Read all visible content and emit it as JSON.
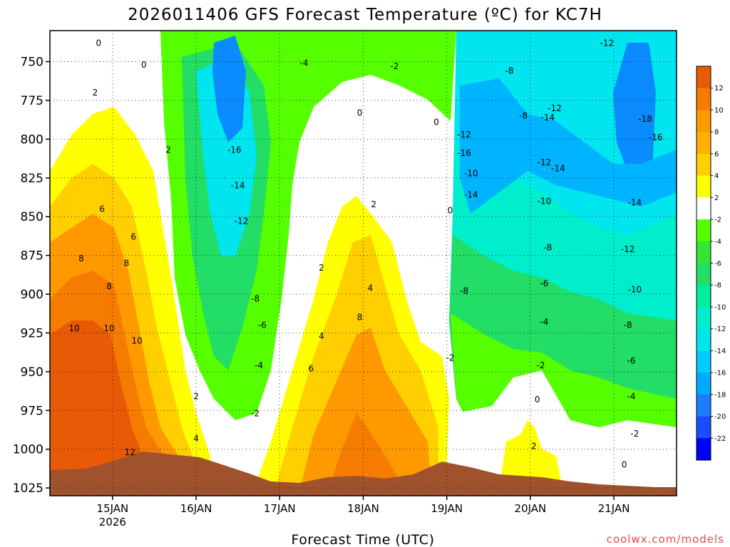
{
  "chart_data": {
    "type": "heatmap",
    "title": "2026011406 GFS Forecast Temperature (ºC) for KC7H",
    "xlabel": "Forecast Time (UTC)",
    "credit": "coolwx.com/models",
    "x_start": "2026-01-14T06:00Z",
    "x_end": "2026-01-21T18:00Z",
    "x_ticks": [
      {
        "label": "15JAN",
        "sub": "2026",
        "time": "2026-01-15T00:00Z"
      },
      {
        "label": "16JAN",
        "sub": "",
        "time": "2026-01-16T00:00Z"
      },
      {
        "label": "17JAN",
        "sub": "",
        "time": "2026-01-17T00:00Z"
      },
      {
        "label": "18JAN",
        "sub": "",
        "time": "2026-01-18T00:00Z"
      },
      {
        "label": "19JAN",
        "sub": "",
        "time": "2026-01-19T00:00Z"
      },
      {
        "label": "20JAN",
        "sub": "",
        "time": "2026-01-20T00:00Z"
      },
      {
        "label": "21JAN",
        "sub": "",
        "time": "2026-01-21T00:00Z"
      }
    ],
    "y_ticks": [
      750,
      775,
      800,
      825,
      850,
      875,
      900,
      925,
      950,
      975,
      1000,
      1025
    ],
    "ylim": [
      730,
      1030
    ],
    "y_axis": "pressure (hPa), increasing downward",
    "grid": "dotted",
    "legend": "colorbar, right",
    "colorbar": {
      "labels": [
        "12",
        "10",
        "8",
        "6",
        "4",
        "2",
        "-2",
        "-4",
        "-6",
        "-8",
        "-10",
        "-12",
        "-14",
        "-16",
        "-18",
        "-20",
        "-22"
      ],
      "colors": [
        "#e85a06",
        "#f57c00",
        "#ff9900",
        "#ffb000",
        "#ffcf00",
        "#ffff00",
        "#ffffff",
        "#55ff00",
        "#33e633",
        "#22dd66",
        "#00ee99",
        "#00eecc",
        "#00e5ee",
        "#00ccff",
        "#00aaff",
        "#1a7dff",
        "#1a4dff",
        "#0000ff"
      ]
    },
    "contour_labels": [
      {
        "text": "0",
        "time": "2026-01-14T20:00Z",
        "p": 738
      },
      {
        "text": "0",
        "time": "2026-01-15T09:00Z",
        "p": 752
      },
      {
        "text": "2",
        "time": "2026-01-14T19:00Z",
        "p": 770
      },
      {
        "text": "2",
        "time": "2026-01-15T16:00Z",
        "p": 807
      },
      {
        "text": "6",
        "time": "2026-01-14T21:00Z",
        "p": 845
      },
      {
        "text": "6",
        "time": "2026-01-15T06:00Z",
        "p": 863
      },
      {
        "text": "8",
        "time": "2026-01-14T15:00Z",
        "p": 877
      },
      {
        "text": "8",
        "time": "2026-01-15T04:00Z",
        "p": 880
      },
      {
        "text": "8",
        "time": "2026-01-14T23:00Z",
        "p": 895
      },
      {
        "text": "10",
        "time": "2026-01-14T13:00Z",
        "p": 922
      },
      {
        "text": "10",
        "time": "2026-01-14T23:00Z",
        "p": 922
      },
      {
        "text": "10",
        "time": "2026-01-15T07:00Z",
        "p": 930
      },
      {
        "text": "12",
        "time": "2026-01-15T05:00Z",
        "p": 1002
      },
      {
        "text": "2",
        "time": "2026-01-16T00:00Z",
        "p": 966
      },
      {
        "text": "4",
        "time": "2026-01-16T00:00Z",
        "p": 993
      },
      {
        "text": "-16",
        "time": "2026-01-16T11:00Z",
        "p": 807
      },
      {
        "text": "-14",
        "time": "2026-01-16T12:00Z",
        "p": 830
      },
      {
        "text": "-12",
        "time": "2026-01-16T13:00Z",
        "p": 853
      },
      {
        "text": "-8",
        "time": "2026-01-16T17:00Z",
        "p": 903
      },
      {
        "text": "-6",
        "time": "2026-01-16T19:00Z",
        "p": 920
      },
      {
        "text": "-4",
        "time": "2026-01-16T18:00Z",
        "p": 946
      },
      {
        "text": "-2",
        "time": "2026-01-16T17:00Z",
        "p": 977
      },
      {
        "text": "-4",
        "time": "2026-01-17T07:00Z",
        "p": 751
      },
      {
        "text": "-2",
        "time": "2026-01-18T09:00Z",
        "p": 753
      },
      {
        "text": "0",
        "time": "2026-01-17T23:00Z",
        "p": 783
      },
      {
        "text": "0",
        "time": "2026-01-18T21:00Z",
        "p": 789
      },
      {
        "text": "2",
        "time": "2026-01-17T12:00Z",
        "p": 883
      },
      {
        "text": "2",
        "time": "2026-01-18T03:00Z",
        "p": 842
      },
      {
        "text": "4",
        "time": "2026-01-17T12:00Z",
        "p": 927
      },
      {
        "text": "4",
        "time": "2026-01-18T02:00Z",
        "p": 896
      },
      {
        "text": "6",
        "time": "2026-01-17T09:00Z",
        "p": 948
      },
      {
        "text": "8",
        "time": "2026-01-17T23:00Z",
        "p": 915
      },
      {
        "text": "0",
        "time": "2026-01-19T01:00Z",
        "p": 846
      },
      {
        "text": "-2",
        "time": "2026-01-19T01:00Z",
        "p": 941
      },
      {
        "text": "-8",
        "time": "2026-01-19T05:00Z",
        "p": 898
      },
      {
        "text": "-8",
        "time": "2026-01-19T18:00Z",
        "p": 756
      },
      {
        "text": "-8",
        "time": "2026-01-19T22:00Z",
        "p": 785
      },
      {
        "text": "-12",
        "time": "2026-01-19T05:00Z",
        "p": 797
      },
      {
        "text": "-16",
        "time": "2026-01-19T05:00Z",
        "p": 809
      },
      {
        "text": "-10",
        "time": "2026-01-19T07:00Z",
        "p": 822
      },
      {
        "text": "-14",
        "time": "2026-01-19T07:00Z",
        "p": 836
      },
      {
        "text": "-12",
        "time": "2026-01-20T07:00Z",
        "p": 780
      },
      {
        "text": "-14",
        "time": "2026-01-20T05:00Z",
        "p": 786
      },
      {
        "text": "-12",
        "time": "2026-01-20T04:00Z",
        "p": 815
      },
      {
        "text": "-14",
        "time": "2026-01-20T08:00Z",
        "p": 819
      },
      {
        "text": "-10",
        "time": "2026-01-20T04:00Z",
        "p": 840
      },
      {
        "text": "-8",
        "time": "2026-01-20T05:00Z",
        "p": 870
      },
      {
        "text": "-6",
        "time": "2026-01-20T04:00Z",
        "p": 893
      },
      {
        "text": "-4",
        "time": "2026-01-20T04:00Z",
        "p": 918
      },
      {
        "text": "-2",
        "time": "2026-01-20T03:00Z",
        "p": 946
      },
      {
        "text": "0",
        "time": "2026-01-20T02:00Z",
        "p": 968
      },
      {
        "text": "2",
        "time": "2026-01-20T01:00Z",
        "p": 998
      },
      {
        "text": "-12",
        "time": "2026-01-20T22:00Z",
        "p": 738
      },
      {
        "text": "-18",
        "time": "2026-01-21T09:00Z",
        "p": 787
      },
      {
        "text": "-16",
        "time": "2026-01-21T12:00Z",
        "p": 799
      },
      {
        "text": "-14",
        "time": "2026-01-21T06:00Z",
        "p": 841
      },
      {
        "text": "-12",
        "time": "2026-01-21T04:00Z",
        "p": 871
      },
      {
        "text": "-10",
        "time": "2026-01-21T06:00Z",
        "p": 897
      },
      {
        "text": "-8",
        "time": "2026-01-21T04:00Z",
        "p": 920
      },
      {
        "text": "-6",
        "time": "2026-01-21T05:00Z",
        "p": 943
      },
      {
        "text": "-4",
        "time": "2026-01-21T05:00Z",
        "p": 966
      },
      {
        "text": "-2",
        "time": "2026-01-21T06:00Z",
        "p": 990
      },
      {
        "text": "0",
        "time": "2026-01-21T03:00Z",
        "p": 1010
      }
    ]
  }
}
